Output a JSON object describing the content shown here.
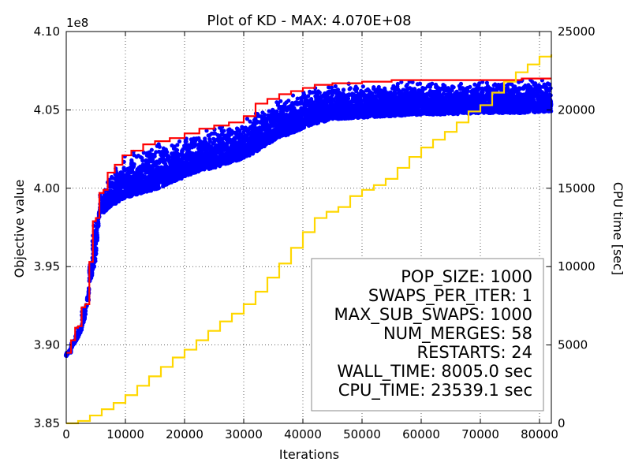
{
  "chart_data": {
    "type": "line",
    "title": "Plot of KD - MAX: 4.070E+08",
    "xlabel": "Iterations",
    "ylabel": "Objective value",
    "y2label": "CPU time [sec]",
    "y_offset_text": "1e8",
    "xlim": [
      0,
      82000
    ],
    "ylim": [
      3.85,
      4.1
    ],
    "y2lim": [
      0,
      25000
    ],
    "x_ticks": [
      0,
      10000,
      20000,
      30000,
      40000,
      50000,
      60000,
      70000,
      80000
    ],
    "y_ticks": [
      "3.85",
      "3.90",
      "3.95",
      "4.00",
      "4.05",
      "4.10"
    ],
    "y2_ticks": [
      0,
      5000,
      10000,
      15000,
      20000,
      25000
    ],
    "grid": true,
    "colors": {
      "population": "#0000ff",
      "best": "#ff0000",
      "cpu": "#ffd700"
    },
    "series": [
      {
        "axis": "left",
        "style": "steps",
        "color": "#ff0000",
        "x": [
          0,
          800,
          1500,
          2000,
          2600,
          3200,
          3900,
          4500,
          5000,
          5600,
          6300,
          7000,
          8200,
          9500,
          11000,
          13000,
          15000,
          17500,
          20000,
          22500,
          25000,
          27500,
          30000,
          32000,
          34000,
          36000,
          38000,
          40000,
          42000,
          45000,
          50000,
          55000,
          60000,
          65000,
          70000,
          75000,
          77000,
          82000
        ],
        "y": [
          3.895,
          3.903,
          3.911,
          3.912,
          3.924,
          3.926,
          3.953,
          3.979,
          3.981,
          3.997,
          3.999,
          4.01,
          4.015,
          4.021,
          4.024,
          4.028,
          4.03,
          4.032,
          4.035,
          4.038,
          4.04,
          4.042,
          4.046,
          4.054,
          4.057,
          4.06,
          4.062,
          4.064,
          4.066,
          4.067,
          4.068,
          4.069,
          4.069,
          4.069,
          4.069,
          4.069,
          4.07,
          4.07
        ]
      },
      {
        "axis": "right",
        "style": "steps",
        "color": "#ffd700",
        "x": [
          0,
          2000,
          4000,
          6000,
          8000,
          10000,
          12000,
          14000,
          16000,
          18000,
          20000,
          22000,
          24000,
          26000,
          28000,
          30000,
          32000,
          34000,
          36000,
          38000,
          40000,
          42000,
          44000,
          46000,
          48000,
          50000,
          52000,
          54000,
          56000,
          58000,
          60000,
          62000,
          64000,
          66000,
          68000,
          70000,
          72000,
          74000,
          76000,
          78000,
          80000,
          82000
        ],
        "y": [
          0,
          150,
          500,
          900,
          1300,
          1800,
          2400,
          3000,
          3600,
          4200,
          4700,
          5300,
          5900,
          6500,
          7000,
          7600,
          8400,
          9300,
          10200,
          11200,
          12200,
          13100,
          13500,
          13800,
          14500,
          14900,
          15200,
          15600,
          16300,
          17000,
          17600,
          18100,
          18600,
          19200,
          19900,
          20300,
          21100,
          21800,
          22400,
          22900,
          23400,
          23539
        ]
      }
    ],
    "scatter_band": {
      "name": "population",
      "color": "#0000ff",
      "x": [
        0,
        800,
        1500,
        2000,
        2600,
        3200,
        3900,
        4500,
        5000,
        5600,
        6300,
        7000,
        8200,
        9500,
        11000,
        13000,
        15000,
        17500,
        20000,
        22500,
        25000,
        27500,
        30000,
        32000,
        34000,
        36000,
        38000,
        40000,
        42000,
        45000,
        50000,
        55000,
        60000,
        65000,
        70000,
        75000,
        77000,
        82000
      ],
      "lower": [
        3.893,
        3.898,
        3.902,
        3.905,
        3.91,
        3.918,
        3.94,
        3.946,
        3.955,
        3.986,
        3.984,
        3.987,
        3.99,
        3.993,
        3.995,
        3.997,
        3.999,
        4.003,
        4.007,
        4.011,
        4.013,
        4.016,
        4.019,
        4.023,
        4.028,
        4.032,
        4.035,
        4.038,
        4.041,
        4.044,
        4.045,
        4.046,
        4.047,
        4.047,
        4.048,
        4.048,
        4.048,
        4.049
      ]
    },
    "legend": {
      "placement": "bottom-right",
      "lines": [
        "POP_SIZE: 1000",
        "SWAPS_PER_ITER: 1",
        "MAX_SUB_SWAPS: 1000",
        "NUM_MERGES: 58",
        "RESTARTS: 24",
        "WALL_TIME: 8005.0 sec",
        "CPU_TIME: 23539.1 sec"
      ]
    }
  }
}
